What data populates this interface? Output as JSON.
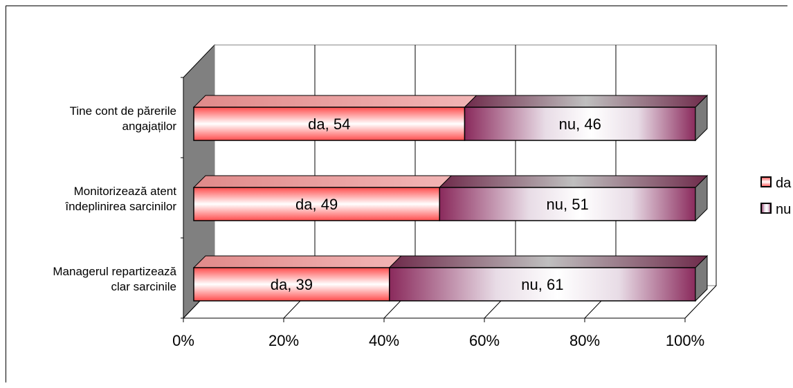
{
  "chart_data": {
    "type": "bar",
    "orientation": "horizontal",
    "stacked": "percent",
    "categories": [
      "Tine cont de părerile angajaților",
      "Monitorizează atent îndeplinirea sarcinilor",
      "Managerul repartizează clar sarcinile"
    ],
    "category_lines": [
      [
        "Tine cont de părerile",
        "angajaților"
      ],
      [
        "Monitorizează atent",
        "îndeplinirea sarcinilor"
      ],
      [
        "Managerul repartizează",
        "clar sarcinile"
      ]
    ],
    "series": [
      {
        "name": "da",
        "values": [
          54,
          49,
          39
        ],
        "labels": [
          "da, 54",
          "da, 49",
          "da, 39"
        ],
        "color": "#ff3333"
      },
      {
        "name": "nu",
        "values": [
          46,
          51,
          61
        ],
        "labels": [
          "nu, 46",
          "nu, 51",
          "nu, 61"
        ],
        "color": "#993366"
      }
    ],
    "xticks": [
      "0%",
      "20%",
      "40%",
      "60%",
      "80%",
      "100%"
    ],
    "xlim": [
      0,
      100
    ],
    "grid": true,
    "legend": "right",
    "three_d": true
  }
}
